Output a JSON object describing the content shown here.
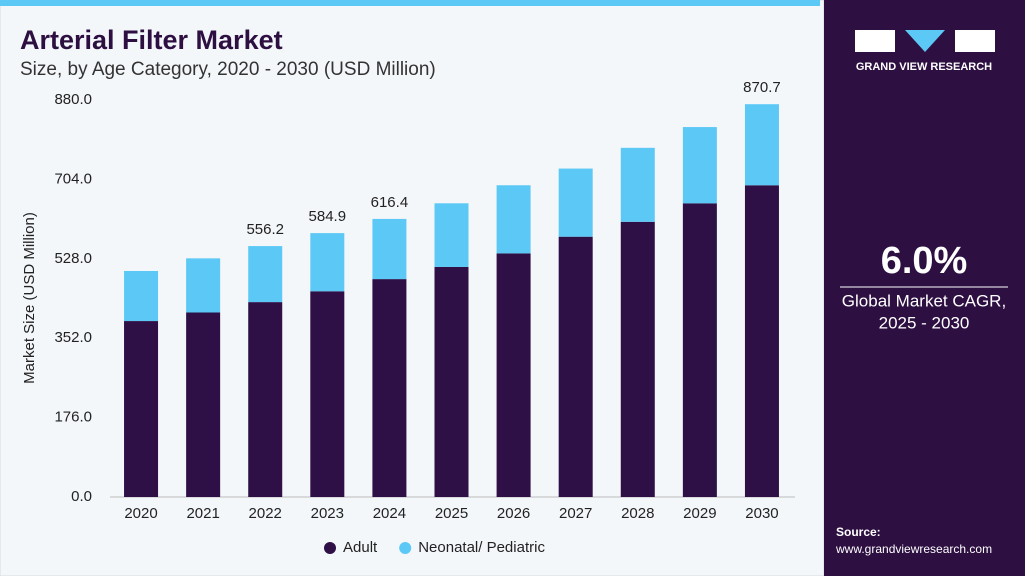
{
  "chart_data": {
    "type": "stacked_bar",
    "title": "Arterial Filter Market",
    "subtitle": "Size, by Age Category, 2020 - 2030 (USD Million)",
    "y_label": "Market Size (USD Million)",
    "categories": [
      "2020",
      "2021",
      "2022",
      "2023",
      "2024",
      "2025",
      "2026",
      "2027",
      "2028",
      "2029",
      "2030"
    ],
    "series": [
      {
        "name": "Adult",
        "color": "#2e0f46",
        "values": [
          390,
          409,
          432,
          456,
          483,
          510,
          540,
          577,
          610,
          651,
          691
        ]
      },
      {
        "name": "Neonatal/ Pediatric",
        "color": "#5bc8f5",
        "values": [
          111,
          120,
          124.2,
          128.9,
          133.4,
          141,
          151,
          151,
          164,
          169,
          179.7
        ]
      }
    ],
    "totals": [
      null,
      null,
      556.2,
      584.9,
      616.4,
      null,
      null,
      null,
      null,
      null,
      870.7
    ],
    "ylim": [
      0,
      880
    ],
    "yticks": [
      {
        "value": 0,
        "label": "0.0"
      },
      {
        "value": 176,
        "label": "176.0"
      },
      {
        "value": 352,
        "label": "352.0"
      },
      {
        "value": 528,
        "label": "528.0"
      },
      {
        "value": 704,
        "label": "704.0"
      },
      {
        "value": 880,
        "label": "880.0"
      }
    ],
    "grid": false,
    "legend": "bottom"
  },
  "panel": {
    "logo": "GRAND VIEW RESEARCH",
    "cagr": "6.0%",
    "cagr_label_1": "Global Market CAGR,",
    "cagr_label_2": "2025 - 2030",
    "source_label": "Source:",
    "source_url": "www.grandviewresearch.com"
  }
}
